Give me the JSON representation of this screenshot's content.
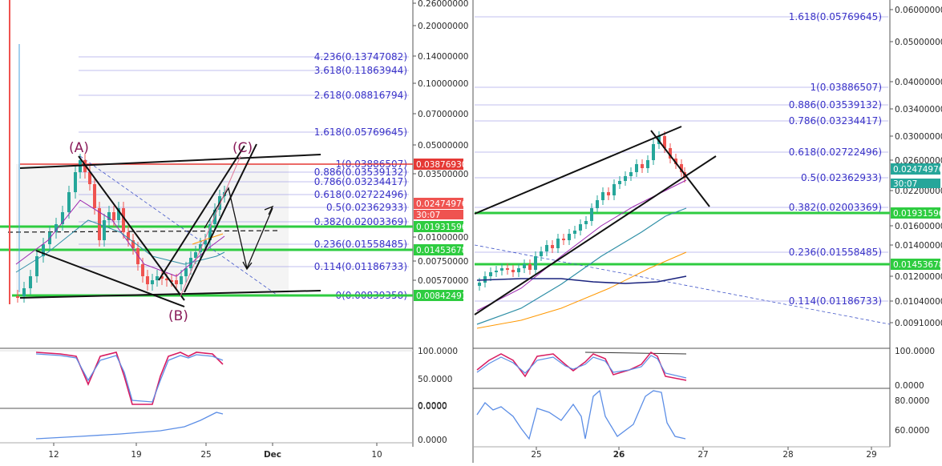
{
  "chart_data": [
    {
      "type": "candlestick",
      "panel": "left",
      "x_labels": [
        "12",
        "19",
        "25",
        "Dec",
        "10"
      ],
      "y_labels": [
        "0.26000000",
        "0.20000000",
        "0.14000000",
        "0.10000000",
        "0.07000000",
        "0.05000000",
        "0.03500000",
        "0.01000000",
        "0.00750000",
        "0.00570000"
      ],
      "fib_levels": [
        {
          "ratio": "4.236",
          "value": "0.13747082",
          "label": "4.236(0.13747082)"
        },
        {
          "ratio": "3.618",
          "value": "0.11863944",
          "label": "3.618(0.11863944)"
        },
        {
          "ratio": "2.618",
          "value": "0.08816794",
          "label": "2.618(0.08816794)"
        },
        {
          "ratio": "1.618",
          "value": "0.05769645",
          "label": "1.618(0.05769645)"
        },
        {
          "ratio": "1",
          "value": "0.03886507",
          "label": "1(0.03886507)"
        },
        {
          "ratio": "0.886",
          "value": "0.03539132",
          "label": "0.886(0.03539132)"
        },
        {
          "ratio": "0.786",
          "value": "0.03234417",
          "label": "0.786(0.03234417)"
        },
        {
          "ratio": "0.618",
          "value": "0.02722496",
          "label": "0.618(0.02722496)"
        },
        {
          "ratio": "0.5",
          "value": "0.02362933",
          "label": "0.5(0.02362933)"
        },
        {
          "ratio": "0.382",
          "value": "0.02003369",
          "label": "0.382(0.02003369)"
        },
        {
          "ratio": "0.236",
          "value": "0.01558485",
          "label": "0.236(0.01558485)"
        },
        {
          "ratio": "0.114",
          "value": "0.01186733",
          "label": "0.114(0.01186733)"
        },
        {
          "ratio": "0",
          "value": "0.00839358",
          "label": "0(0.00839358)"
        }
      ],
      "price_tags": [
        {
          "value": "0.03876930",
          "color": "#e53935"
        },
        {
          "value": "0.02474976",
          "color": "#ef5350"
        },
        {
          "value": "30:07",
          "color": "#ef5350"
        },
        {
          "value": "0.01931596",
          "color": "#2ecc40"
        },
        {
          "value": "0.01453678",
          "color": "#2ecc40"
        },
        {
          "value": "0.00842491",
          "color": "#2ecc40"
        }
      ],
      "wave_labels": [
        "(A)",
        "(B)",
        "(C)"
      ],
      "indicator_1": {
        "y_labels": [
          "100.0000",
          "50.0000",
          "0.0000"
        ]
      },
      "indicator_2": {
        "y_labels": [
          "0.0000",
          "0.0000"
        ]
      }
    },
    {
      "type": "candlestick",
      "panel": "right",
      "x_labels": [
        "25",
        "26",
        "27",
        "28",
        "29"
      ],
      "y_labels": [
        "0.06000000",
        "0.05000000",
        "0.04000000",
        "0.03400000",
        "0.03000000",
        "0.02600000",
        "0.02200000",
        "0.01600000",
        "0.01400000",
        "0.01200000",
        "0.01040000",
        "0.00910000"
      ],
      "fib_levels": [
        {
          "ratio": "1.618",
          "value": "0.05769645",
          "label": "1.618(0.05769645)"
        },
        {
          "ratio": "1",
          "value": "0.03886507",
          "label": "1(0.03886507)"
        },
        {
          "ratio": "0.886",
          "value": "0.03539132",
          "label": "0.886(0.03539132)"
        },
        {
          "ratio": "0.786",
          "value": "0.03234417",
          "label": "0.786(0.03234417)"
        },
        {
          "ratio": "0.618",
          "value": "0.02722496",
          "label": "0.618(0.02722496)"
        },
        {
          "ratio": "0.5",
          "value": "0.02362933",
          "label": "0.5(0.02362933)"
        },
        {
          "ratio": "0.382",
          "value": "0.02003369",
          "label": "0.382(0.02003369)"
        },
        {
          "ratio": "0.236",
          "value": "0.01558485",
          "label": "0.236(0.01558485)"
        },
        {
          "ratio": "0.114",
          "value": "0.01186733",
          "label": "0.114(0.01186733)"
        }
      ],
      "price_tags": [
        {
          "value": "0.02474976",
          "color": "#26a69a"
        },
        {
          "value": "30:07",
          "color": "#26a69a"
        },
        {
          "value": "0.01931596",
          "color": "#2ecc40"
        },
        {
          "value": "0.01453678",
          "color": "#2ecc40"
        }
      ],
      "indicator_1": {
        "y_labels": [
          "100.0000",
          "0.0000"
        ]
      },
      "indicator_2": {
        "y_labels": [
          "80.0000",
          "60.0000"
        ]
      }
    }
  ],
  "colors": {
    "up": "#26a69a",
    "down": "#ef5350",
    "fib": "#3a33c8",
    "support": "#2ecc40",
    "resistance": "#e53935",
    "wave_label": "#8a1c5a",
    "stoch_k": "#d81b60",
    "stoch_d": "#5c8ee6",
    "ma_purple": "#9c27b0",
    "ma_teal": "#2f8fa6",
    "ma_orange": "#ff9800",
    "ma_navy": "#1a237e"
  }
}
